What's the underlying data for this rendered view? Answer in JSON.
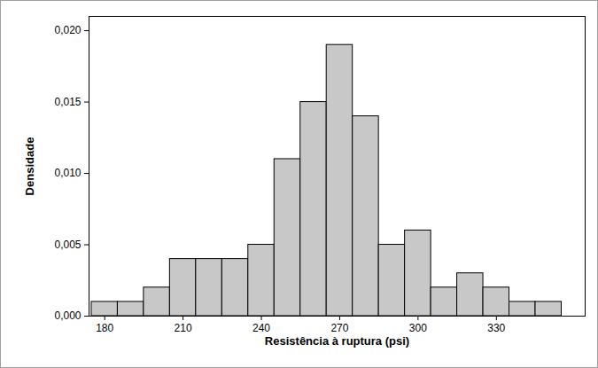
{
  "chart_data": {
    "type": "histogram",
    "x_label": "Resistência à ruptura (psi)",
    "y_label": "Densidade",
    "bins": [
      175,
      185,
      195,
      205,
      215,
      225,
      235,
      245,
      255,
      265,
      275,
      285,
      295,
      305,
      315,
      325,
      335,
      345,
      355
    ],
    "values": [
      0.001,
      0.001,
      0.002,
      0.004,
      0.004,
      0.004,
      0.005,
      0.011,
      0.015,
      0.019,
      0.014,
      0.005,
      0.006,
      0.002,
      0.003,
      0.002,
      0.001,
      0.001
    ],
    "color": "#c8c8c8",
    "xlim": [
      174,
      364
    ],
    "xticks": [
      180,
      210,
      240,
      270,
      300,
      330
    ],
    "ylim": [
      0,
      0.021
    ],
    "yticks": [
      {
        "value": 0,
        "label": "0,000"
      },
      {
        "value": 0.005,
        "label": "0,005"
      },
      {
        "value": 0.01,
        "label": "0,010"
      },
      {
        "value": 0.015,
        "label": "0,015"
      },
      {
        "value": 0.02,
        "label": "0,020"
      }
    ],
    "grid": false
  }
}
